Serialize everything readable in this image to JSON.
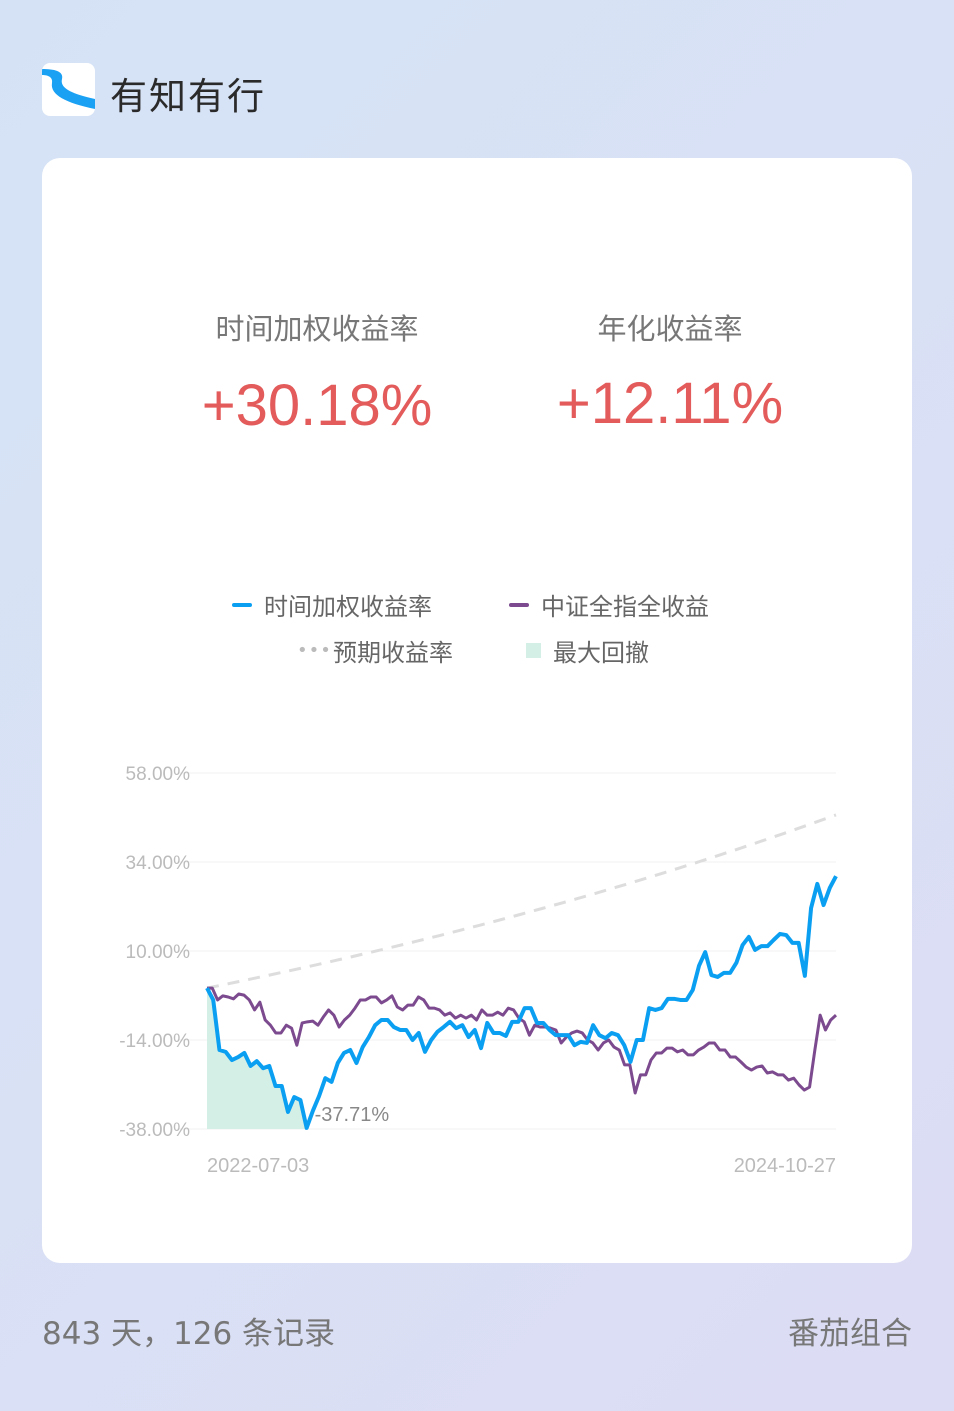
{
  "app": {
    "name": "有知有行",
    "logo_icon": "river-logo-icon"
  },
  "metrics": [
    {
      "label": "时间加权收益率",
      "value": "+30.18%"
    },
    {
      "label": "年化收益率",
      "value": "+12.11%"
    }
  ],
  "legend": [
    {
      "label": "时间加权收益率",
      "color": "#0b9ff2",
      "style": "line"
    },
    {
      "label": "中证全指全收益",
      "color": "#7c4a8e",
      "style": "line"
    },
    {
      "label": "预期收益率",
      "color": "#cccccc",
      "style": "dotted"
    },
    {
      "label": "最大回撤",
      "color": "#d4efe6",
      "style": "area"
    }
  ],
  "chart_data": {
    "type": "line",
    "ylim": [
      -38,
      58
    ],
    "y_ticks": [
      "58.00%",
      "34.00%",
      "10.00%",
      "-14.00%",
      "-38.00%"
    ],
    "y_tick_values": [
      58,
      34,
      10,
      -14,
      -38
    ],
    "x_ticks": [
      "2022-07-03",
      "2024-10-27"
    ],
    "grid": true,
    "max_drawdown_label": "-37.71%",
    "series": [
      {
        "name": "时间加权收益率",
        "color": "#0b9ff2",
        "values": [
          0,
          -3.2,
          -16.7,
          -17.2,
          -19.4,
          -18.6,
          -17.5,
          -21.0,
          -19.7,
          -21.6,
          -21.0,
          -26.4,
          -26.4,
          -33.4,
          -29.4,
          -30.2,
          -37.7,
          -33.1,
          -29.1,
          -24.3,
          -25.3,
          -20.2,
          -17.5,
          -16.7,
          -20.2,
          -15.9,
          -13.2,
          -10.0,
          -8.6,
          -8.6,
          -10.5,
          -11.3,
          -11.3,
          -14.0,
          -12.1,
          -17.2,
          -14.0,
          -11.8,
          -10.5,
          -9.1,
          -10.8,
          -10.0,
          -13.2,
          -11.3,
          -16.2,
          -9.4,
          -12.1,
          -12.1,
          -12.9,
          -9.1,
          -9.1,
          -5.4,
          -5.4,
          -9.4,
          -9.4,
          -11.3,
          -12.7,
          -12.7,
          -12.7,
          -15.4,
          -14.5,
          -14.8,
          -10.0,
          -12.7,
          -13.5,
          -12.1,
          -12.7,
          -15.4,
          -19.9,
          -14.0,
          -14.0,
          -5.4,
          -5.9,
          -5.4,
          -2.9,
          -2.9,
          -3.2,
          -3.2,
          -0.5,
          6.0,
          9.7,
          3.5,
          3.0,
          4.1,
          4.1,
          6.8,
          11.6,
          13.8,
          10.3,
          11.3,
          11.3,
          13.0,
          14.6,
          14.3,
          12.2,
          12.2,
          3.3,
          21.6,
          28.1,
          22.4,
          27.0,
          30.18
        ]
      },
      {
        "name": "中证全指全收益",
        "color": "#7c4a8e",
        "values": [
          0,
          0,
          -3.2,
          -2.1,
          -2.4,
          -2.9,
          -1.6,
          -1.9,
          -3.2,
          -5.9,
          -3.8,
          -8.6,
          -10.0,
          -12.1,
          -12.1,
          -10.0,
          -10.8,
          -15.4,
          -9.4,
          -9.1,
          -8.9,
          -10.0,
          -7.8,
          -5.9,
          -7.3,
          -10.5,
          -8.6,
          -7.3,
          -5.4,
          -3.2,
          -3.2,
          -2.4,
          -2.4,
          -4.0,
          -3.2,
          -2.1,
          -5.1,
          -5.9,
          -4.6,
          -4.6,
          -2.4,
          -3.2,
          -5.4,
          -5.4,
          -5.9,
          -7.3,
          -6.7,
          -8.1,
          -7.3,
          -8.1,
          -7.3,
          -8.6,
          -5.9,
          -7.3,
          -7.3,
          -6.5,
          -7.3,
          -5.4,
          -5.9,
          -8.1,
          -9.1,
          -12.7,
          -10.0,
          -10.5,
          -10.5,
          -10.8,
          -11.3,
          -14.8,
          -13.2,
          -12.1,
          -11.6,
          -12.1,
          -14.0,
          -14.8,
          -16.7,
          -14.8,
          -14.0,
          -15.9,
          -16.7,
          -20.7,
          -20.7,
          -28.3,
          -23.4,
          -23.4,
          -19.4,
          -17.5,
          -17.5,
          -16.2,
          -16.2,
          -17.2,
          -16.7,
          -18.0,
          -18.0,
          -16.7,
          -15.9,
          -14.8,
          -14.8,
          -16.7,
          -16.7,
          -18.6,
          -18.6,
          -19.9,
          -21.3,
          -22.1,
          -21.3,
          -21.0,
          -22.9,
          -22.6,
          -23.4,
          -23.4,
          -24.8,
          -24.3,
          -26.1,
          -27.5,
          -26.7,
          -16.7,
          -7.3,
          -11.3,
          -8.6,
          -7.3
        ]
      },
      {
        "name": "预期收益率",
        "color": "#dddddd",
        "start": 0,
        "end": 46.7
      }
    ]
  },
  "footer": {
    "summary": "843 天，126 条记录",
    "portfolio": "番茄组合"
  }
}
